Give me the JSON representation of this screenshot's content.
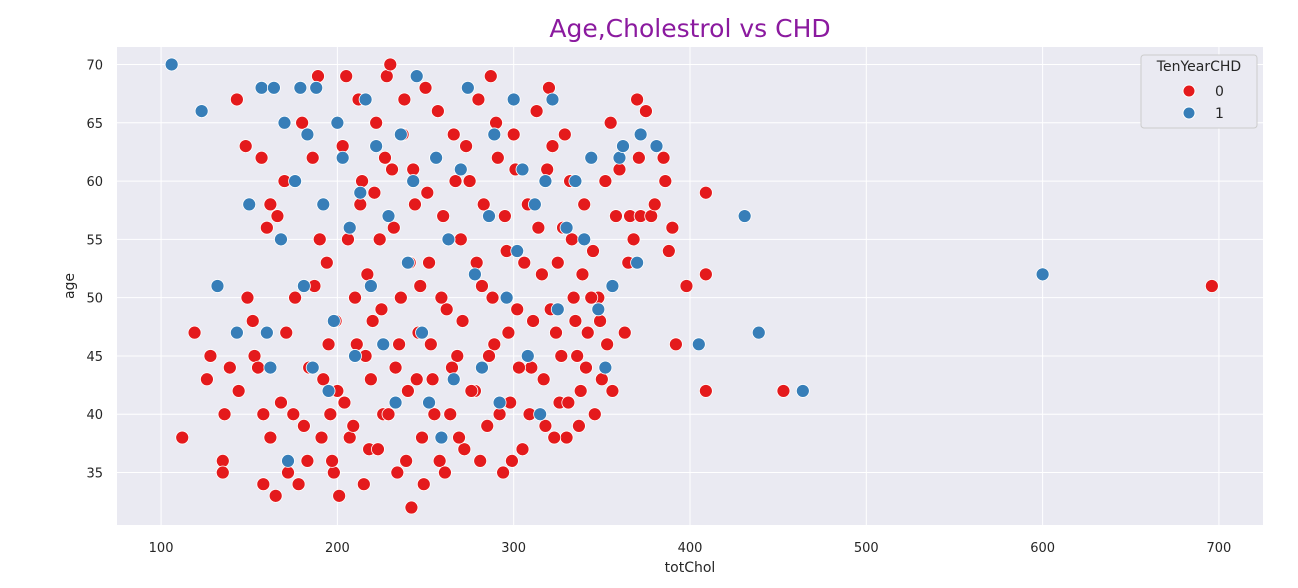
{
  "chart_data": {
    "type": "scatter",
    "title": "Age,Cholestrol vs CHD",
    "title_color": "#8B1A9F",
    "xlabel": "totChol",
    "ylabel": "age",
    "xlim": [
      75,
      725
    ],
    "ylim": [
      30.5,
      71.5
    ],
    "xticks": [
      100,
      200,
      300,
      400,
      500,
      600,
      700
    ],
    "yticks": [
      35,
      40,
      45,
      50,
      55,
      60,
      65,
      70
    ],
    "grid": true,
    "background": "#EAEAF2",
    "legend": {
      "title": "TenYearCHD",
      "placement": "top-right",
      "entries": [
        {
          "label": "0",
          "color": "#E41A1C"
        },
        {
          "label": "1",
          "color": "#377EB8"
        }
      ]
    },
    "series": [
      {
        "name": "0",
        "color": "#E41A1C",
        "points": [
          [
            112,
            38
          ],
          [
            119,
            47
          ],
          [
            128,
            45
          ],
          [
            126,
            43
          ],
          [
            136,
            40
          ],
          [
            135,
            36
          ],
          [
            135,
            35
          ],
          [
            139,
            44
          ],
          [
            143,
            67
          ],
          [
            144,
            42
          ],
          [
            148,
            63
          ],
          [
            149,
            50
          ],
          [
            152,
            48
          ],
          [
            153,
            45
          ],
          [
            155,
            44
          ],
          [
            157,
            62
          ],
          [
            158,
            34
          ],
          [
            160,
            56
          ],
          [
            162,
            58
          ],
          [
            165,
            33
          ],
          [
            166,
            57
          ],
          [
            170,
            60
          ],
          [
            172,
            35
          ],
          [
            175,
            40
          ],
          [
            178,
            34
          ],
          [
            180,
            65
          ],
          [
            183,
            36
          ],
          [
            186,
            62
          ],
          [
            189,
            69
          ],
          [
            190,
            55
          ],
          [
            192,
            43
          ],
          [
            195,
            46
          ],
          [
            196,
            40
          ],
          [
            198,
            35
          ],
          [
            200,
            42
          ],
          [
            201,
            33
          ],
          [
            203,
            63
          ],
          [
            205,
            69
          ],
          [
            207,
            38
          ],
          [
            210,
            50
          ],
          [
            212,
            67
          ],
          [
            214,
            60
          ],
          [
            216,
            45
          ],
          [
            218,
            37
          ],
          [
            220,
            48
          ],
          [
            222,
            65
          ],
          [
            224,
            55
          ],
          [
            226,
            40
          ],
          [
            228,
            69
          ],
          [
            230,
            70
          ],
          [
            231,
            61
          ],
          [
            233,
            44
          ],
          [
            234,
            35
          ],
          [
            236,
            50
          ],
          [
            238,
            67
          ],
          [
            240,
            42
          ],
          [
            242,
            32
          ],
          [
            244,
            58
          ],
          [
            246,
            47
          ],
          [
            248,
            38
          ],
          [
            250,
            68
          ],
          [
            252,
            53
          ],
          [
            254,
            43
          ],
          [
            256,
            62
          ],
          [
            258,
            36
          ],
          [
            260,
            57
          ],
          [
            262,
            49
          ],
          [
            264,
            40
          ],
          [
            266,
            64
          ],
          [
            268,
            45
          ],
          [
            270,
            55
          ],
          [
            272,
            37
          ],
          [
            275,
            60
          ],
          [
            278,
            42
          ],
          [
            280,
            67
          ],
          [
            282,
            51
          ],
          [
            285,
            39
          ],
          [
            287,
            69
          ],
          [
            289,
            46
          ],
          [
            291,
            62
          ],
          [
            294,
            35
          ],
          [
            296,
            54
          ],
          [
            298,
            41
          ],
          [
            300,
            64
          ],
          [
            302,
            49
          ],
          [
            305,
            37
          ],
          [
            308,
            58
          ],
          [
            310,
            44
          ],
          [
            313,
            66
          ],
          [
            316,
            52
          ],
          [
            318,
            39
          ],
          [
            320,
            68
          ],
          [
            322,
            63
          ],
          [
            324,
            47
          ],
          [
            326,
            41
          ],
          [
            328,
            56
          ],
          [
            330,
            38
          ],
          [
            332,
            60
          ],
          [
            334,
            50
          ],
          [
            336,
            45
          ],
          [
            338,
            42
          ],
          [
            340,
            58
          ],
          [
            342,
            47
          ],
          [
            345,
            54
          ],
          [
            348,
            50
          ],
          [
            350,
            43
          ],
          [
            352,
            60
          ],
          [
            355,
            65
          ],
          [
            356,
            42
          ],
          [
            358,
            57
          ],
          [
            360,
            61
          ],
          [
            363,
            47
          ],
          [
            365,
            53
          ],
          [
            366,
            57
          ],
          [
            368,
            55
          ],
          [
            370,
            67
          ],
          [
            371,
            62
          ],
          [
            372,
            57
          ],
          [
            375,
            66
          ],
          [
            378,
            57
          ],
          [
            380,
            58
          ],
          [
            385,
            62
          ],
          [
            386,
            60
          ],
          [
            388,
            54
          ],
          [
            390,
            56
          ],
          [
            392,
            46
          ],
          [
            398,
            51
          ],
          [
            409,
            59
          ],
          [
            409,
            52
          ],
          [
            409,
            42
          ],
          [
            453,
            42
          ],
          [
            696,
            51
          ],
          [
            158,
            40
          ],
          [
            162,
            38
          ],
          [
            168,
            41
          ],
          [
            171,
            47
          ],
          [
            176,
            50
          ],
          [
            181,
            39
          ],
          [
            184,
            44
          ],
          [
            187,
            51
          ],
          [
            191,
            38
          ],
          [
            194,
            53
          ],
          [
            197,
            36
          ],
          [
            199,
            48
          ],
          [
            204,
            41
          ],
          [
            206,
            55
          ],
          [
            209,
            39
          ],
          [
            211,
            46
          ],
          [
            213,
            58
          ],
          [
            215,
            34
          ],
          [
            217,
            52
          ],
          [
            219,
            43
          ],
          [
            221,
            59
          ],
          [
            223,
            37
          ],
          [
            225,
            49
          ],
          [
            227,
            62
          ],
          [
            229,
            40
          ],
          [
            232,
            56
          ],
          [
            235,
            46
          ],
          [
            237,
            64
          ],
          [
            239,
            36
          ],
          [
            241,
            53
          ],
          [
            243,
            61
          ],
          [
            245,
            43
          ],
          [
            247,
            51
          ],
          [
            249,
            34
          ],
          [
            251,
            59
          ],
          [
            253,
            46
          ],
          [
            255,
            40
          ],
          [
            257,
            66
          ],
          [
            259,
            50
          ],
          [
            261,
            35
          ],
          [
            263,
            55
          ],
          [
            265,
            44
          ],
          [
            267,
            60
          ],
          [
            269,
            38
          ],
          [
            271,
            48
          ],
          [
            273,
            63
          ],
          [
            276,
            42
          ],
          [
            279,
            53
          ],
          [
            281,
            36
          ],
          [
            283,
            58
          ],
          [
            286,
            45
          ],
          [
            288,
            50
          ],
          [
            290,
            65
          ],
          [
            292,
            40
          ],
          [
            295,
            57
          ],
          [
            297,
            47
          ],
          [
            299,
            36
          ],
          [
            301,
            61
          ],
          [
            303,
            44
          ],
          [
            306,
            53
          ],
          [
            309,
            40
          ],
          [
            311,
            48
          ],
          [
            314,
            56
          ],
          [
            317,
            43
          ],
          [
            319,
            61
          ],
          [
            321,
            49
          ],
          [
            323,
            38
          ],
          [
            325,
            53
          ],
          [
            327,
            45
          ],
          [
            329,
            64
          ],
          [
            331,
            41
          ],
          [
            333,
            55
          ],
          [
            335,
            48
          ],
          [
            337,
            39
          ],
          [
            339,
            52
          ],
          [
            341,
            44
          ],
          [
            344,
            50
          ],
          [
            346,
            40
          ],
          [
            349,
            48
          ],
          [
            353,
            46
          ]
        ]
      },
      {
        "name": "1",
        "color": "#377EB8",
        "points": [
          [
            106,
            70
          ],
          [
            123,
            66
          ],
          [
            132,
            51
          ],
          [
            143,
            47
          ],
          [
            150,
            58
          ],
          [
            157,
            68
          ],
          [
            160,
            47
          ],
          [
            162,
            44
          ],
          [
            164,
            68
          ],
          [
            168,
            55
          ],
          [
            170,
            65
          ],
          [
            172,
            36
          ],
          [
            176,
            60
          ],
          [
            179,
            68
          ],
          [
            181,
            51
          ],
          [
            183,
            64
          ],
          [
            186,
            44
          ],
          [
            188,
            68
          ],
          [
            192,
            58
          ],
          [
            195,
            42
          ],
          [
            198,
            48
          ],
          [
            200,
            65
          ],
          [
            203,
            62
          ],
          [
            207,
            56
          ],
          [
            210,
            45
          ],
          [
            213,
            59
          ],
          [
            216,
            67
          ],
          [
            219,
            51
          ],
          [
            222,
            63
          ],
          [
            226,
            46
          ],
          [
            229,
            57
          ],
          [
            233,
            41
          ],
          [
            236,
            64
          ],
          [
            240,
            53
          ],
          [
            243,
            60
          ],
          [
            245,
            69
          ],
          [
            248,
            47
          ],
          [
            252,
            41
          ],
          [
            256,
            62
          ],
          [
            259,
            38
          ],
          [
            263,
            55
          ],
          [
            266,
            43
          ],
          [
            270,
            61
          ],
          [
            274,
            68
          ],
          [
            278,
            52
          ],
          [
            282,
            44
          ],
          [
            286,
            57
          ],
          [
            289,
            64
          ],
          [
            292,
            41
          ],
          [
            296,
            50
          ],
          [
            300,
            67
          ],
          [
            302,
            54
          ],
          [
            305,
            61
          ],
          [
            308,
            45
          ],
          [
            312,
            58
          ],
          [
            315,
            40
          ],
          [
            318,
            60
          ],
          [
            322,
            67
          ],
          [
            325,
            49
          ],
          [
            330,
            56
          ],
          [
            335,
            60
          ],
          [
            340,
            55
          ],
          [
            344,
            62
          ],
          [
            348,
            49
          ],
          [
            352,
            44
          ],
          [
            356,
            51
          ],
          [
            360,
            62
          ],
          [
            362,
            63
          ],
          [
            370,
            53
          ],
          [
            372,
            64
          ],
          [
            381,
            63
          ],
          [
            405,
            46
          ],
          [
            431,
            57
          ],
          [
            439,
            47
          ],
          [
            464,
            42
          ],
          [
            600,
            52
          ]
        ]
      }
    ]
  }
}
